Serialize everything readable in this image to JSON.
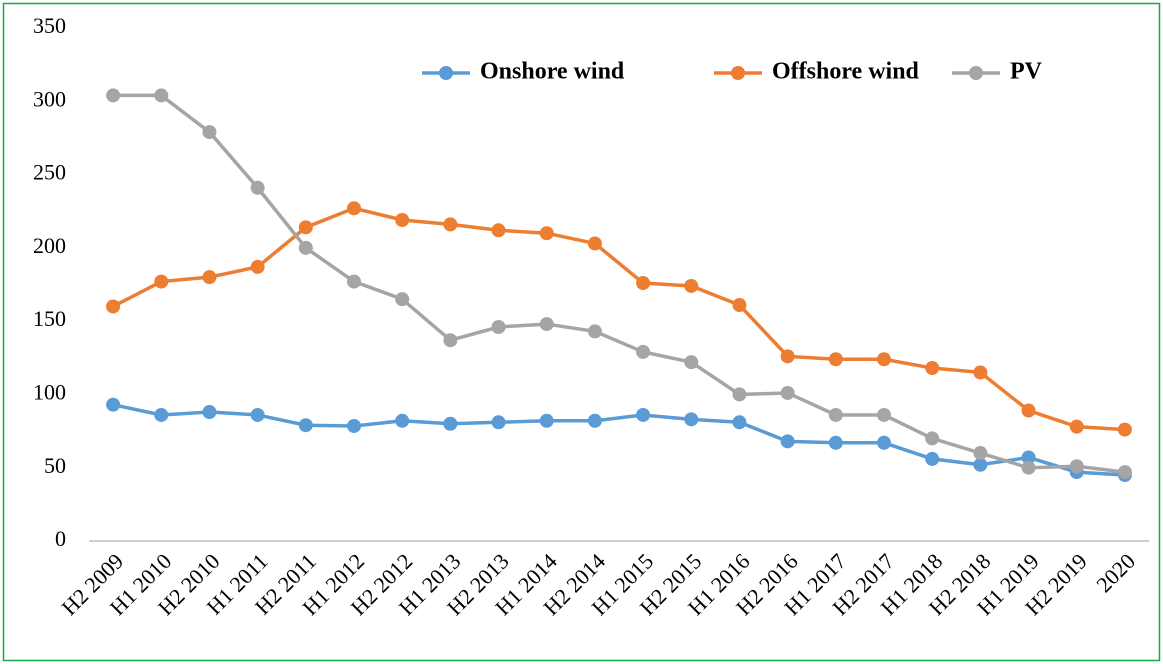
{
  "chart_data": {
    "type": "line",
    "categories": [
      "H2 2009",
      "H1 2010",
      "H2 2010",
      "H1 2011",
      "H2 2011",
      "H1 2012",
      "H2 2012",
      "H1 2013",
      "H2 2013",
      "H1 2014",
      "H2 2014",
      "H1 2015",
      "H2 2015",
      "H1 2016",
      "H2 2016",
      "H1 2017",
      "H2 2017",
      "H1 2018",
      "H2 2018",
      "H1 2019",
      "H2 2019",
      "2020"
    ],
    "series": [
      {
        "name": "Onshore wind",
        "color": "#5b9bd5",
        "values": [
          93,
          86,
          88,
          86,
          79,
          78.5,
          82,
          80,
          81,
          82,
          82,
          86,
          83,
          81,
          68,
          67,
          67,
          56,
          52,
          57,
          47,
          45
        ]
      },
      {
        "name": "Offshore wind",
        "color": "#ed7d31",
        "values": [
          160,
          177,
          180,
          187,
          214,
          227,
          219,
          216,
          212,
          210,
          203,
          176,
          174,
          161,
          126,
          124,
          124,
          118,
          115,
          89,
          78,
          76
        ]
      },
      {
        "name": "PV",
        "color": "#a5a5a5",
        "values": [
          304,
          304,
          279,
          241,
          200,
          177,
          165,
          137,
          146,
          148,
          143,
          129,
          122,
          100,
          101,
          86,
          86,
          70,
          60,
          50,
          51,
          47
        ]
      }
    ],
    "ylim": [
      0,
      350
    ],
    "yticks": [
      0,
      50,
      100,
      150,
      200,
      250,
      300,
      350
    ],
    "grid": false,
    "legend": "top"
  }
}
